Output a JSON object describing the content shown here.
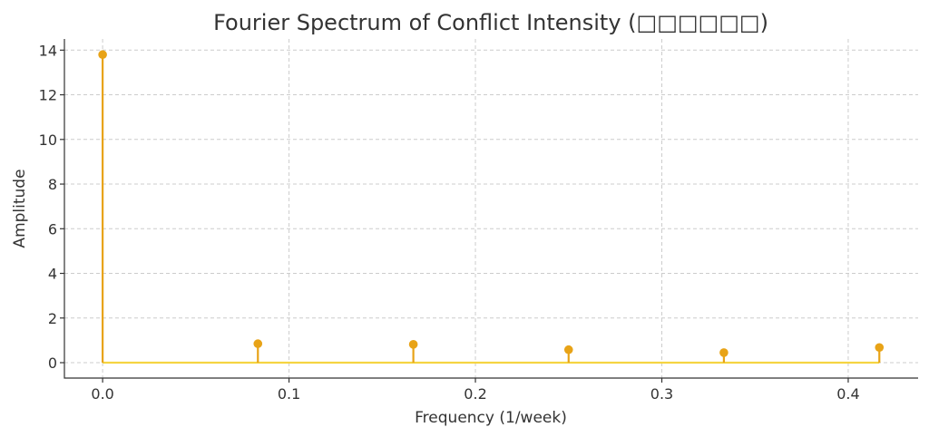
{
  "chart_data": {
    "type": "stem",
    "title": "Fourier Spectrum of Conflict Intensity (□□□□□□)",
    "xlabel": "Frequency (1/week)",
    "ylabel": "Amplitude",
    "xlim": [
      -0.0205,
      0.4375
    ],
    "ylim": [
      -0.69,
      14.5
    ],
    "xticks": [
      0.0,
      0.1,
      0.2,
      0.3,
      0.4
    ],
    "xtick_labels": [
      "0.0",
      "0.1",
      "0.2",
      "0.3",
      "0.4"
    ],
    "yticks": [
      0,
      2,
      4,
      6,
      8,
      10,
      12,
      14
    ],
    "ytick_labels": [
      "0",
      "2",
      "4",
      "6",
      "8",
      "10",
      "12",
      "14"
    ],
    "grid": true,
    "series": [
      {
        "x": [
          0.0,
          0.0833,
          0.1667,
          0.25,
          0.3333,
          0.4167
        ],
        "values": [
          13.8,
          0.85,
          0.82,
          0.58,
          0.45,
          0.68
        ]
      }
    ],
    "colors": {
      "stem": "#e8a317",
      "marker": "#e8a317",
      "baseline": "#f5d442"
    }
  }
}
